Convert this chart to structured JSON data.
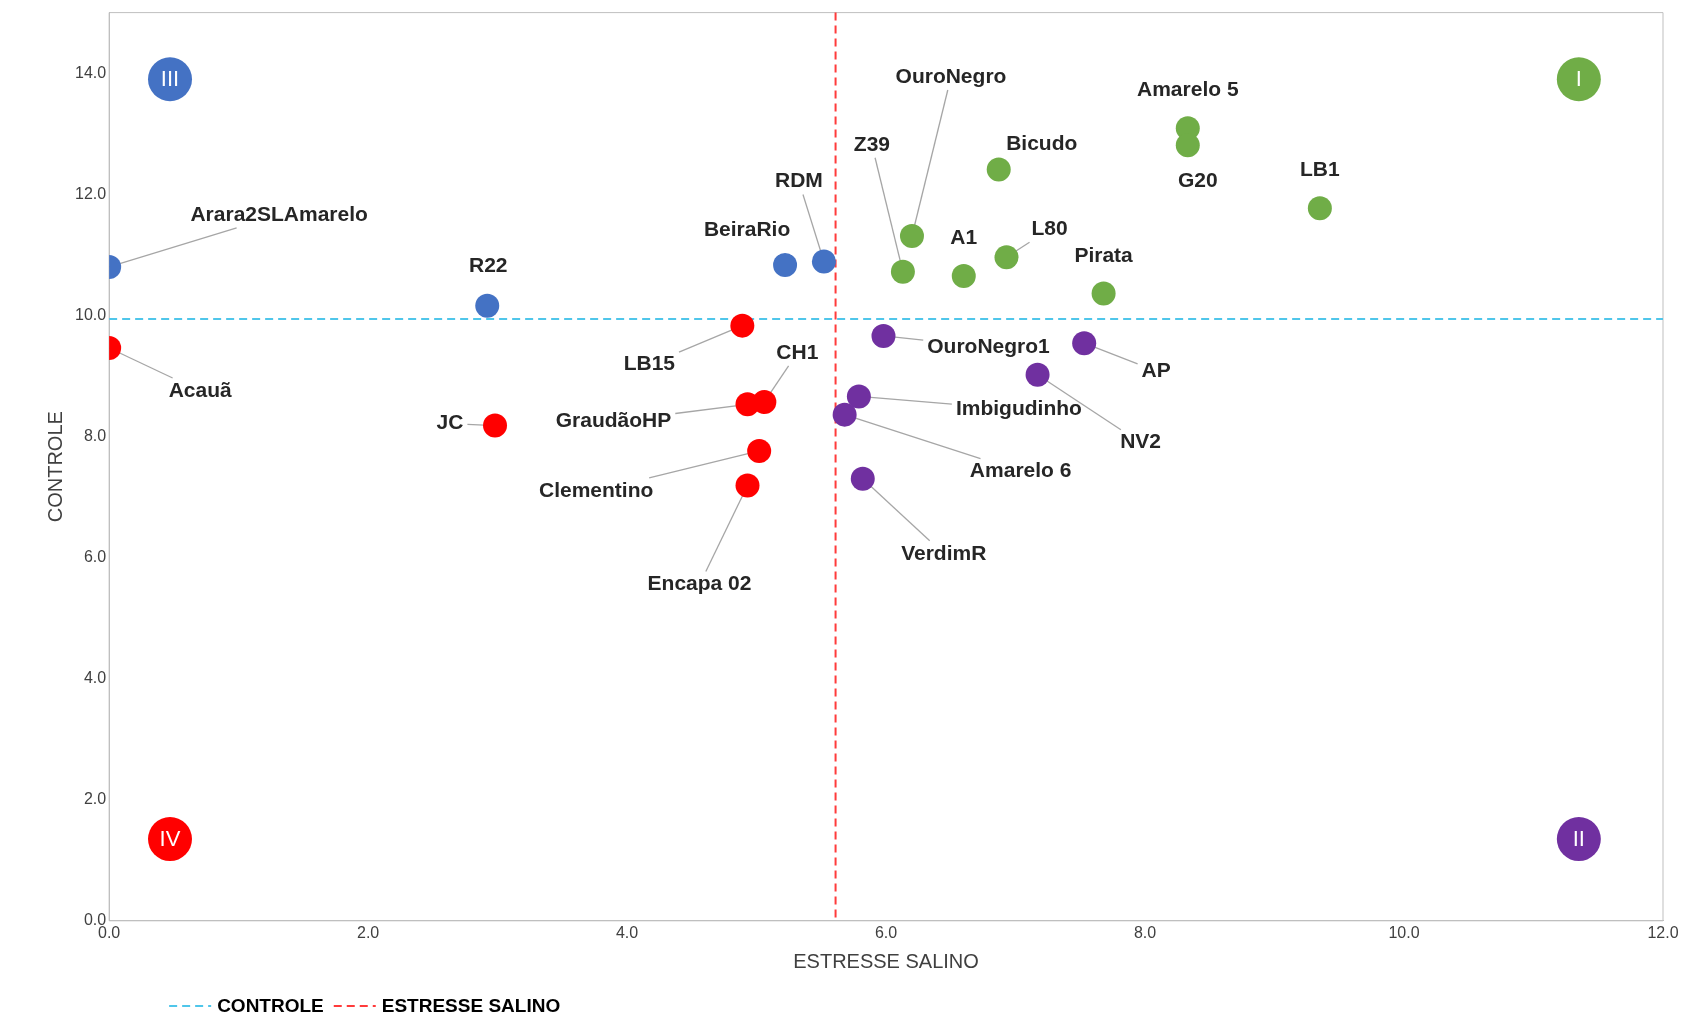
{
  "chart_data": {
    "type": "scatter",
    "xlabel": "ESTRESSE SALINO",
    "ylabel": "CONTROLE",
    "xlim": [
      0,
      12
    ],
    "xticks": [
      {
        "value": 0,
        "label": "0.0"
      },
      {
        "value": 2,
        "label": "2.0"
      },
      {
        "value": 4,
        "label": "4.0"
      },
      {
        "value": 6,
        "label": "6.0"
      },
      {
        "value": 8,
        "label": "8.0"
      },
      {
        "value": 10,
        "label": "10.0"
      },
      {
        "value": 12,
        "label": "12.0"
      }
    ],
    "ylim": [
      0,
      15
    ],
    "yticks": [
      {
        "value": 0,
        "label": "0.0"
      },
      {
        "value": 2,
        "label": "2.0"
      },
      {
        "value": 4,
        "label": "4.0"
      },
      {
        "value": 6,
        "label": "6.0"
      },
      {
        "value": 8,
        "label": "8.0"
      },
      {
        "value": 10,
        "label": "10.0"
      },
      {
        "value": 12,
        "label": "12.0"
      },
      {
        "value": 14,
        "label": "14.0"
      }
    ],
    "marker": "circle",
    "legend": "bottom left",
    "series": [
      {
        "color": "#4472c4",
        "x": [
          0,
          2.92,
          5.22,
          5.52
        ],
        "values": [
          10.8,
          10.16,
          10.83,
          10.89
        ]
      },
      {
        "color": "#ff0000",
        "x": [
          0,
          4.89,
          2.98,
          4.93,
          5.06,
          5.02,
          4.93
        ],
        "values": [
          9.46,
          9.83,
          8.18,
          8.53,
          8.57,
          7.76,
          7.19
        ]
      },
      {
        "color": "#7030a0",
        "x": [
          5.98,
          7.53,
          7.17,
          5.79,
          5.68,
          5.82
        ],
        "values": [
          9.66,
          9.54,
          9.02,
          8.66,
          8.36,
          7.3
        ]
      },
      {
        "color": "#70ad47",
        "x": [
          6.2,
          6.13,
          6.6,
          6.93,
          6.87,
          7.68,
          8.33,
          8.33,
          9.35
        ],
        "values": [
          11.31,
          10.72,
          10.65,
          10.96,
          12.41,
          10.36,
          13.09,
          12.81,
          11.77
        ]
      }
    ],
    "ref_lines": [
      {
        "axis": "y",
        "value": 9.94,
        "label": "CONTROLE",
        "color": "#4fc6ea",
        "line_style": "dashed"
      },
      {
        "axis": "x",
        "value": 5.61,
        "label": "ESTRESSE SALINO",
        "color": "#ff3b3b",
        "line_style": "dashed"
      }
    ],
    "annotations": [
      {
        "text": "Arara2SLAmarelo",
        "x": 0,
        "y": 10.8
      },
      {
        "text": "R22",
        "x": 2.92,
        "y": 10.16
      },
      {
        "text": "BeiraRio",
        "x": 5.22,
        "y": 10.83
      },
      {
        "text": "RDM",
        "x": 5.52,
        "y": 10.89
      },
      {
        "text": "Acauã",
        "x": 0,
        "y": 9.46
      },
      {
        "text": "LB15",
        "x": 4.89,
        "y": 9.83
      },
      {
        "text": "JC",
        "x": 2.98,
        "y": 8.18
      },
      {
        "text": "GraudãoHP",
        "x": 4.93,
        "y": 8.53
      },
      {
        "text": "CH1",
        "x": 5.06,
        "y": 8.57
      },
      {
        "text": "Clementino",
        "x": 5.02,
        "y": 7.76
      },
      {
        "text": "Encapa 02",
        "x": 4.93,
        "y": 7.19
      },
      {
        "text": "OuroNegro1",
        "x": 5.98,
        "y": 9.66
      },
      {
        "text": "AP",
        "x": 7.53,
        "y": 9.54
      },
      {
        "text": "NV2",
        "x": 7.17,
        "y": 9.02
      },
      {
        "text": "Imbigudinho",
        "x": 5.79,
        "y": 8.66
      },
      {
        "text": "Amarelo 6",
        "x": 5.68,
        "y": 8.36
      },
      {
        "text": "VerdimR",
        "x": 5.82,
        "y": 7.3
      },
      {
        "text": "OuroNegro",
        "x": 6.2,
        "y": 11.31
      },
      {
        "text": "Z39",
        "x": 6.13,
        "y": 10.72
      },
      {
        "text": "A1",
        "x": 6.6,
        "y": 10.65
      },
      {
        "text": "L80",
        "x": 6.93,
        "y": 10.96
      },
      {
        "text": "Bicudo",
        "x": 6.87,
        "y": 12.41
      },
      {
        "text": "Pirata",
        "x": 7.68,
        "y": 10.36
      },
      {
        "text": "Amarelo 5",
        "x": 8.33,
        "y": 13.09
      },
      {
        "text": "G20",
        "x": 8.33,
        "y": 12.81
      },
      {
        "text": "LB1",
        "x": 9.35,
        "y": 11.77
      },
      {
        "text": "I",
        "x": 11.35,
        "y": 13.9
      },
      {
        "text": "II",
        "x": 11.35,
        "y": 1.35
      },
      {
        "text": "III",
        "x": 0.47,
        "y": 13.9
      },
      {
        "text": "IV",
        "x": 0.47,
        "y": 1.35
      }
    ]
  }
}
